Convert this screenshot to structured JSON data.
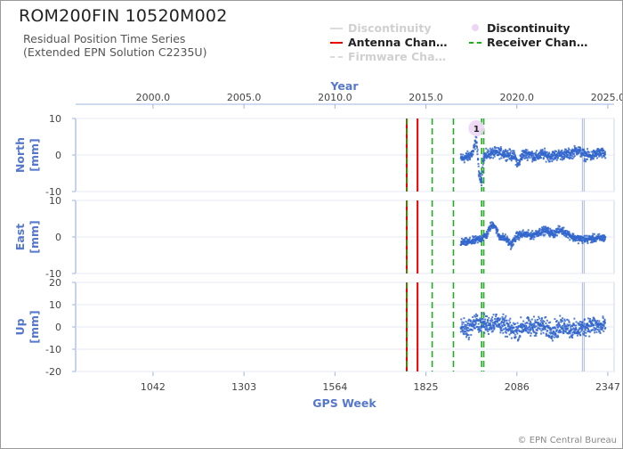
{
  "title": "ROM200FIN 10520M002",
  "subtitle_line1": "Residual Position Time Series",
  "subtitle_line2": "(Extended EPN Solution C2235U)",
  "credit": "© EPN Central Bureau",
  "legend": [
    {
      "label": "Discontinuity",
      "style": "line-faded",
      "color": "#d8d8d8"
    },
    {
      "label": "Discontinuity",
      "style": "dot",
      "color": "#e6c8f0"
    },
    {
      "label": "Antenna Chan…",
      "style": "solid",
      "color": "#ee0000"
    },
    {
      "label": "Receiver Chan…",
      "style": "dashed",
      "color": "#22aa22"
    },
    {
      "label": "Firmware Cha…",
      "style": "dashed-faded",
      "color": "#d8d8d8"
    }
  ],
  "chart_data": {
    "type": "scatter",
    "top_axis": {
      "label": "Year",
      "ticks": [
        "2000.0",
        "2005.0",
        "2010.0",
        "2015.0",
        "2020.0",
        "2025.0"
      ],
      "tick_values_gps_week": [
        1042,
        1303,
        1564,
        1825,
        2086,
        2347
      ]
    },
    "bottom_axis": {
      "label": "GPS Week",
      "ticks": [
        "1042",
        "1303",
        "1564",
        "1825",
        "2086",
        "2347"
      ],
      "range": [
        820,
        2365
      ]
    },
    "panels": [
      {
        "name": "North",
        "unit": "[mm]",
        "ylim": [
          -10,
          10
        ],
        "yticks": [
          "10",
          "0",
          "-10"
        ],
        "ytick_values": [
          10,
          0,
          -10
        ]
      },
      {
        "name": "East",
        "unit": "[mm]",
        "ylim": [
          -10,
          10
        ],
        "yticks": [
          "10",
          "0",
          "-10"
        ],
        "ytick_values": [
          10,
          0,
          -10
        ]
      },
      {
        "name": "Up",
        "unit": "[mm]",
        "ylim": [
          -20,
          20
        ],
        "yticks": [
          "20",
          "10",
          "0",
          "-10",
          "-20"
        ],
        "ytick_values": [
          20,
          10,
          0,
          -10,
          -20
        ]
      }
    ],
    "series_color": "#3366cc",
    "data_start_week": 1925,
    "data_end_week": 2340,
    "antenna_changes_gps_week": [
      1770,
      1801
    ],
    "receiver_changes_gps_week": [
      1771,
      1843,
      1904,
      1985,
      1991
    ],
    "firmware_changes_gps_week": [
      2274,
      2279
    ],
    "discontinuity_marker": {
      "gps_week": 1970,
      "label": "1"
    },
    "north_series": [
      {
        "x": 1925,
        "y": -1.0
      },
      {
        "x": 1945,
        "y": -0.5
      },
      {
        "x": 1960,
        "y": 0.6
      },
      {
        "x": 1970,
        "y": 4.5
      },
      {
        "x": 1978,
        "y": -6.0
      },
      {
        "x": 1985,
        "y": -7.0
      },
      {
        "x": 1990,
        "y": -0.5
      },
      {
        "x": 2010,
        "y": 0.5
      },
      {
        "x": 2040,
        "y": 0.6
      },
      {
        "x": 2060,
        "y": 0.2
      },
      {
        "x": 2080,
        "y": -0.4
      },
      {
        "x": 2090,
        "y": -2.8
      },
      {
        "x": 2100,
        "y": 0.0
      },
      {
        "x": 2120,
        "y": 0.4
      },
      {
        "x": 2140,
        "y": -0.6
      },
      {
        "x": 2160,
        "y": 0.3
      },
      {
        "x": 2180,
        "y": -0.4
      },
      {
        "x": 2200,
        "y": 0.0
      },
      {
        "x": 2220,
        "y": 0.2
      },
      {
        "x": 2240,
        "y": 0.3
      },
      {
        "x": 2260,
        "y": 1.5
      },
      {
        "x": 2280,
        "y": 0.0
      },
      {
        "x": 2300,
        "y": -0.3
      },
      {
        "x": 2320,
        "y": 0.6
      },
      {
        "x": 2340,
        "y": 0.2
      }
    ],
    "east_series": [
      {
        "x": 1925,
        "y": -1.6
      },
      {
        "x": 1945,
        "y": -1.4
      },
      {
        "x": 1965,
        "y": -1.0
      },
      {
        "x": 1985,
        "y": -0.3
      },
      {
        "x": 2000,
        "y": 0.6
      },
      {
        "x": 2010,
        "y": 2.8
      },
      {
        "x": 2020,
        "y": 3.6
      },
      {
        "x": 2035,
        "y": 0.2
      },
      {
        "x": 2055,
        "y": -0.5
      },
      {
        "x": 2070,
        "y": -2.2
      },
      {
        "x": 2085,
        "y": 0.2
      },
      {
        "x": 2105,
        "y": 0.8
      },
      {
        "x": 2130,
        "y": 0.4
      },
      {
        "x": 2150,
        "y": 1.4
      },
      {
        "x": 2170,
        "y": 1.8
      },
      {
        "x": 2190,
        "y": 0.8
      },
      {
        "x": 2210,
        "y": 2.0
      },
      {
        "x": 2230,
        "y": 1.0
      },
      {
        "x": 2250,
        "y": -0.2
      },
      {
        "x": 2270,
        "y": -0.6
      },
      {
        "x": 2290,
        "y": -0.6
      },
      {
        "x": 2310,
        "y": -0.4
      },
      {
        "x": 2340,
        "y": -0.2
      }
    ],
    "up_series": [
      {
        "x": 1925,
        "y": 0.0
      },
      {
        "x": 1945,
        "y": -1.0
      },
      {
        "x": 1965,
        "y": 2.0
      },
      {
        "x": 1985,
        "y": 1.5
      },
      {
        "x": 2005,
        "y": 1.0
      },
      {
        "x": 2025,
        "y": 2.5
      },
      {
        "x": 2045,
        "y": 1.0
      },
      {
        "x": 2065,
        "y": -1.0
      },
      {
        "x": 2085,
        "y": -2.0
      },
      {
        "x": 2105,
        "y": 0.5
      },
      {
        "x": 2125,
        "y": -0.5
      },
      {
        "x": 2145,
        "y": 1.0
      },
      {
        "x": 2165,
        "y": 0.0
      },
      {
        "x": 2185,
        "y": -1.5
      },
      {
        "x": 2205,
        "y": -0.5
      },
      {
        "x": 2225,
        "y": 1.0
      },
      {
        "x": 2245,
        "y": -1.5
      },
      {
        "x": 2265,
        "y": -1.0
      },
      {
        "x": 2285,
        "y": 0.5
      },
      {
        "x": 2305,
        "y": 1.0
      },
      {
        "x": 2325,
        "y": 0.0
      },
      {
        "x": 2340,
        "y": 0.5
      }
    ],
    "north_scatter_mm": 1.2,
    "east_scatter_mm": 0.9,
    "up_scatter_mm": 3.5
  }
}
